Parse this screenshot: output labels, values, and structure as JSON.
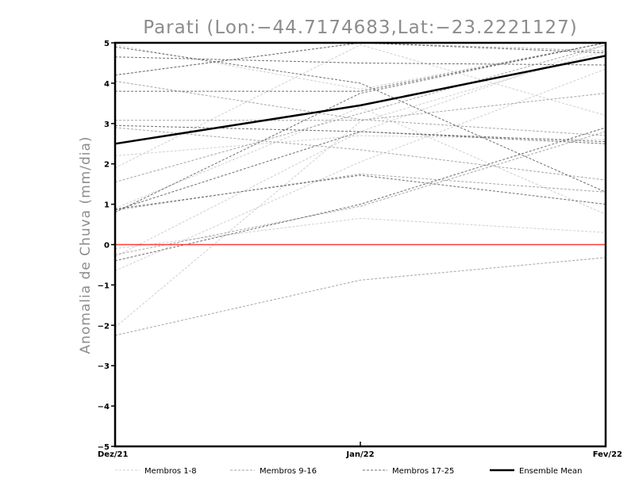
{
  "chart_data": {
    "type": "line",
    "title": "Parati (Lon:−44.7174683,Lat:−23.2221127)",
    "xlabel": "",
    "ylabel": "Anomalia de Chuva (mm/dia)",
    "categories": [
      "Dez/21",
      "Jan/22",
      "Fev/22"
    ],
    "ylim": [
      -5,
      5
    ],
    "yticks": [
      "5",
      "4",
      "3",
      "2",
      "1",
      "0",
      "−3",
      "−4",
      "−5"
    ],
    "ytick_values": [
      5,
      4,
      3,
      2,
      1,
      0,
      -3,
      -4,
      -5
    ],
    "ytick_extra": [
      {
        "label": "−1",
        "value": -1
      },
      {
        "label": "−2",
        "value": -2
      }
    ],
    "grid": false,
    "zero_line": {
      "value": 0,
      "color": "#ff3b3b"
    },
    "groups": [
      {
        "name": "Membros 1-8",
        "color": "#cfcfcf",
        "dash": "3,2"
      },
      {
        "name": "Membros 9-16",
        "color": "#a6a6a6",
        "dash": "3,2"
      },
      {
        "name": "Membros 17-25",
        "color": "#6e6e6e",
        "dash": "3,2"
      }
    ],
    "series": [
      {
        "group": 0,
        "values": [
          -0.65,
          2.05,
          4.35
        ]
      },
      {
        "group": 0,
        "values": [
          -2.05,
          3.05,
          4.8
        ]
      },
      {
        "group": 0,
        "values": [
          -0.1,
          0.65,
          0.3
        ]
      },
      {
        "group": 0,
        "values": [
          1.9,
          4.95,
          3.2
        ]
      },
      {
        "group": 0,
        "values": [
          4.95,
          3.85,
          5.0
        ]
      },
      {
        "group": 0,
        "values": [
          2.2,
          2.7,
          2.6
        ]
      },
      {
        "group": 0,
        "values": [
          0.9,
          3.4,
          0.75
        ]
      },
      {
        "group": 0,
        "values": [
          -0.3,
          2.8,
          4.95
        ]
      },
      {
        "group": 1,
        "values": [
          -2.25,
          -0.88,
          -0.32
        ]
      },
      {
        "group": 1,
        "values": [
          3.08,
          3.08,
          3.75
        ]
      },
      {
        "group": 1,
        "values": [
          4.05,
          3.1,
          2.7
        ]
      },
      {
        "group": 1,
        "values": [
          1.55,
          3.25,
          4.95
        ]
      },
      {
        "group": 1,
        "values": [
          0.85,
          1.75,
          1.3
        ]
      },
      {
        "group": 1,
        "values": [
          -0.25,
          0.95,
          2.8
        ]
      },
      {
        "group": 1,
        "values": [
          2.9,
          2.35,
          1.6
        ]
      },
      {
        "group": 1,
        "values": [
          4.2,
          5.0,
          4.8
        ]
      },
      {
        "group": 2,
        "values": [
          0.85,
          2.8,
          2.55
        ]
      },
      {
        "group": 2,
        "values": [
          3.8,
          3.8,
          5.0
        ]
      },
      {
        "group": 2,
        "values": [
          4.65,
          4.5,
          4.45
        ]
      },
      {
        "group": 2,
        "values": [
          -0.4,
          1.0,
          2.9
        ]
      },
      {
        "group": 2,
        "values": [
          0.8,
          3.75,
          5.0
        ]
      },
      {
        "group": 2,
        "values": [
          4.2,
          5.0,
          4.75
        ]
      },
      {
        "group": 2,
        "values": [
          2.95,
          2.8,
          2.5
        ]
      },
      {
        "group": 2,
        "values": [
          4.9,
          4.0,
          1.3
        ]
      },
      {
        "group": 2,
        "values": [
          0.88,
          1.72,
          1.0
        ]
      }
    ],
    "ensemble_mean": {
      "name": "Ensemble Mean",
      "color": "#000000",
      "values": [
        2.5,
        3.45,
        4.68
      ]
    }
  }
}
